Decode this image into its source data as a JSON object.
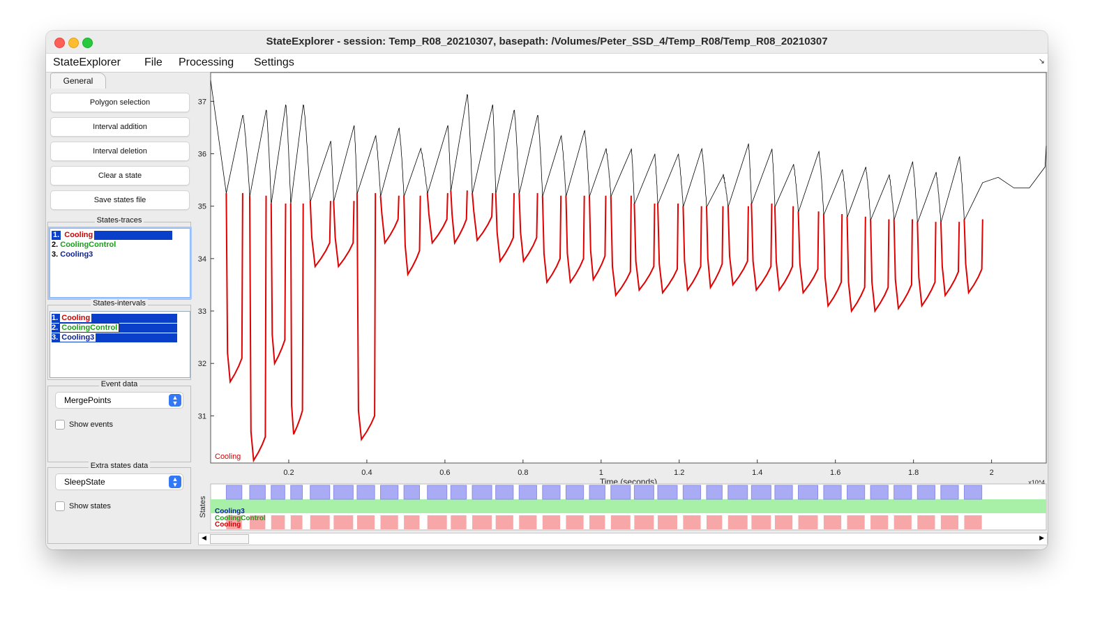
{
  "window": {
    "title": "StateExplorer   -   session: Temp_R08_20210307, basepath: /Volumes/Peter_SSD_4/Temp_R08/Temp_R08_20210307"
  },
  "menu": [
    "StateExplorer",
    "File",
    "Processing",
    "Settings"
  ],
  "sidebar": {
    "tab": "General",
    "buttons": [
      "Polygon selection",
      "Interval addition",
      "Interval deletion",
      "Clear a state",
      "Save states file"
    ],
    "states_traces": {
      "title": "States-traces",
      "items": [
        {
          "num": "1.",
          "label": "Cooling",
          "color": "#d40000"
        },
        {
          "num": "2.",
          "label": "CoolingControl",
          "color": "#16a016"
        },
        {
          "num": "3.",
          "label": "Cooling3",
          "color": "#0b1f9e"
        }
      ]
    },
    "states_intervals": {
      "title": "States-intervals",
      "items": [
        {
          "num": "1.",
          "label": "Cooling",
          "color": "#d40000"
        },
        {
          "num": "2.",
          "label": "CoolingControl",
          "color": "#16a016"
        },
        {
          "num": "3.",
          "label": "Cooling3",
          "color": "#0b1f9e"
        }
      ]
    },
    "event_data": {
      "title": "Event data",
      "selected": "MergePoints",
      "checkbox": "Show events"
    },
    "extra_states": {
      "title": "Extra states data",
      "selected": "SleepState",
      "checkbox": "Show states"
    }
  },
  "chart_data": [
    {
      "type": "line",
      "xlabel": "Time (seconds)",
      "x_exponent": "x10^4",
      "xlim": [
        0,
        2.14
      ],
      "ylim": [
        30.1,
        37.55
      ],
      "xticks": [
        0.2,
        0.4,
        0.6,
        0.8,
        1,
        1.2,
        1.4,
        1.6,
        1.8,
        2
      ],
      "xtick_labels": [
        "0.2",
        "0.4",
        "0.6",
        "0.8",
        "1",
        "1.2",
        "1.4",
        "1.6",
        "1.8",
        "2"
      ],
      "yticks": [
        31,
        32,
        33,
        34,
        35,
        36,
        37
      ],
      "ytick_labels": [
        "31",
        "32",
        "33",
        "34",
        "35",
        "36",
        "37"
      ],
      "trace_label": "Cooling",
      "colors": {
        "baseline": "#000000",
        "cooling": "#e00000"
      },
      "cycles": [
        {
          "on": 0.04,
          "off": 0.08,
          "top": 35.25,
          "min": 31.65,
          "peak": 36.75
        },
        {
          "on": 0.1,
          "off": 0.14,
          "top": 35.2,
          "min": 30.15,
          "peak": 36.85
        },
        {
          "on": 0.155,
          "off": 0.19,
          "top": 35.05,
          "min": 32.0,
          "peak": 36.95
        },
        {
          "on": 0.205,
          "off": 0.235,
          "top": 35.05,
          "min": 30.65,
          "peak": 36.95
        },
        {
          "on": 0.255,
          "off": 0.305,
          "top": 35.1,
          "min": 33.85,
          "peak": 36.25
        },
        {
          "on": 0.315,
          "off": 0.365,
          "top": 35.1,
          "min": 33.85,
          "peak": 36.55
        },
        {
          "on": 0.375,
          "off": 0.42,
          "top": 35.25,
          "min": 30.55,
          "peak": 36.35
        },
        {
          "on": 0.435,
          "off": 0.48,
          "top": 35.2,
          "min": 34.3,
          "peak": 36.5
        },
        {
          "on": 0.495,
          "off": 0.535,
          "top": 35.2,
          "min": 33.7,
          "peak": 36.1
        },
        {
          "on": 0.555,
          "off": 0.605,
          "top": 35.25,
          "min": 34.3,
          "peak": 36.55
        },
        {
          "on": 0.615,
          "off": 0.655,
          "top": 35.3,
          "min": 34.3,
          "peak": 37.15
        },
        {
          "on": 0.67,
          "off": 0.72,
          "top": 35.25,
          "min": 34.35,
          "peak": 36.95
        },
        {
          "on": 0.73,
          "off": 0.775,
          "top": 35.25,
          "min": 33.95,
          "peak": 36.85
        },
        {
          "on": 0.79,
          "off": 0.835,
          "top": 35.25,
          "min": 33.95,
          "peak": 36.75
        },
        {
          "on": 0.85,
          "off": 0.895,
          "top": 35.2,
          "min": 33.55,
          "peak": 36.35
        },
        {
          "on": 0.91,
          "off": 0.955,
          "top": 35.2,
          "min": 33.55,
          "peak": 36.45
        },
        {
          "on": 0.97,
          "off": 1.01,
          "top": 35.2,
          "min": 33.6,
          "peak": 36.1
        },
        {
          "on": 1.025,
          "off": 1.075,
          "top": 35.2,
          "min": 33.3,
          "peak": 36.1
        },
        {
          "on": 1.085,
          "off": 1.135,
          "top": 35.05,
          "min": 33.4,
          "peak": 36.0
        },
        {
          "on": 1.145,
          "off": 1.195,
          "top": 35.05,
          "min": 33.35,
          "peak": 36.0
        },
        {
          "on": 1.21,
          "off": 1.255,
          "top": 35.0,
          "min": 33.4,
          "peak": 36.1
        },
        {
          "on": 1.27,
          "off": 1.31,
          "top": 35.0,
          "min": 33.45,
          "peak": 35.6
        },
        {
          "on": 1.325,
          "off": 1.375,
          "top": 35.0,
          "min": 33.5,
          "peak": 36.2
        },
        {
          "on": 1.385,
          "off": 1.435,
          "top": 35.05,
          "min": 33.4,
          "peak": 36.1
        },
        {
          "on": 1.445,
          "off": 1.49,
          "top": 35.0,
          "min": 33.4,
          "peak": 35.8
        },
        {
          "on": 1.505,
          "off": 1.555,
          "top": 34.9,
          "min": 33.35,
          "peak": 36.05
        },
        {
          "on": 1.57,
          "off": 1.615,
          "top": 34.85,
          "min": 33.1,
          "peak": 35.7
        },
        {
          "on": 1.63,
          "off": 1.675,
          "top": 34.8,
          "min": 33.0,
          "peak": 35.75
        },
        {
          "on": 1.69,
          "off": 1.735,
          "top": 34.75,
          "min": 33.0,
          "peak": 35.6
        },
        {
          "on": 1.75,
          "off": 1.795,
          "top": 34.75,
          "min": 33.05,
          "peak": 35.85
        },
        {
          "on": 1.81,
          "off": 1.855,
          "top": 34.7,
          "min": 33.1,
          "peak": 35.65
        },
        {
          "on": 1.87,
          "off": 1.915,
          "top": 34.7,
          "min": 33.3,
          "peak": 35.95
        },
        {
          "on": 1.93,
          "off": 1.975,
          "top": 34.75,
          "min": 33.35,
          "peak": 35.45
        }
      ]
    },
    {
      "type": "heatmap",
      "ylabel": "States",
      "rows": [
        {
          "name": "Cooling3",
          "color": "#a9acf5",
          "text_color": "#0b1f9e"
        },
        {
          "name": "CoolingControl",
          "color": "#a8f0a8",
          "text_color": "#16a016"
        },
        {
          "name": "Cooling",
          "color": "#f7a7a7",
          "text_color": "#d40000"
        }
      ]
    }
  ]
}
